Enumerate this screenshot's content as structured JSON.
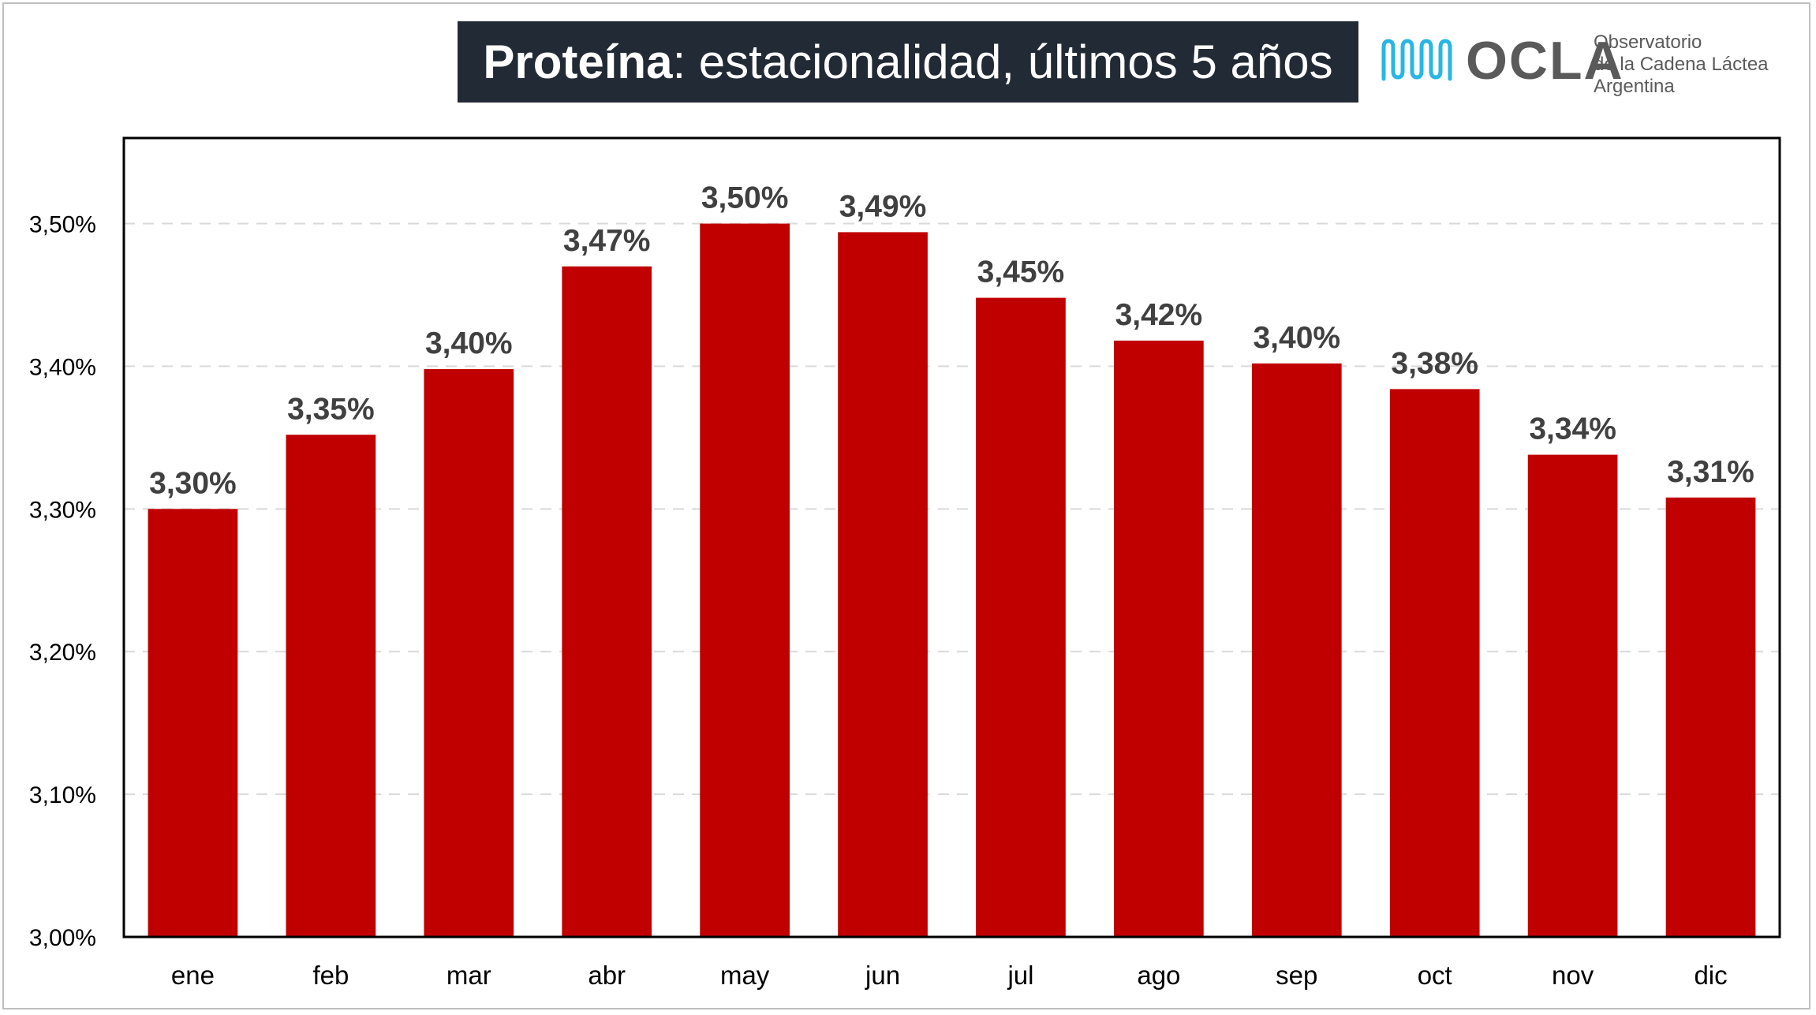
{
  "title": {
    "bold": "Proteína",
    "rest": ": estacionalidad, últimos 5 años"
  },
  "logo": {
    "icon": "ocla-wave-icon",
    "name": "OCLA",
    "line1": "Observatorio",
    "line2": "de la Cadena Láctea",
    "line3": "Argentina"
  },
  "colors": {
    "bar": "#c00000",
    "title_bg": "#222a35",
    "gridline": "#d9d9d9",
    "data_label": "#404040"
  },
  "chart_data": {
    "type": "bar",
    "categories": [
      "ene",
      "feb",
      "mar",
      "abr",
      "may",
      "jun",
      "jul",
      "ago",
      "sep",
      "oct",
      "nov",
      "dic"
    ],
    "values": [
      3.3,
      3.352,
      3.398,
      3.47,
      3.5,
      3.494,
      3.448,
      3.418,
      3.402,
      3.384,
      3.338,
      3.308
    ],
    "data_labels": [
      "3,30%",
      "3,35%",
      "3,40%",
      "3,47%",
      "3,50%",
      "3,49%",
      "3,45%",
      "3,42%",
      "3,40%",
      "3,38%",
      "3,34%",
      "3,31%"
    ],
    "ylim": [
      3.0,
      3.56
    ],
    "yticks": [
      3.0,
      3.1,
      3.2,
      3.3,
      3.4,
      3.5
    ],
    "ytick_labels": [
      "3,00%",
      "3,10%",
      "3,20%",
      "3,30%",
      "3,40%",
      "3,50%"
    ],
    "grid": "horizontal dashed",
    "legend": "none"
  }
}
